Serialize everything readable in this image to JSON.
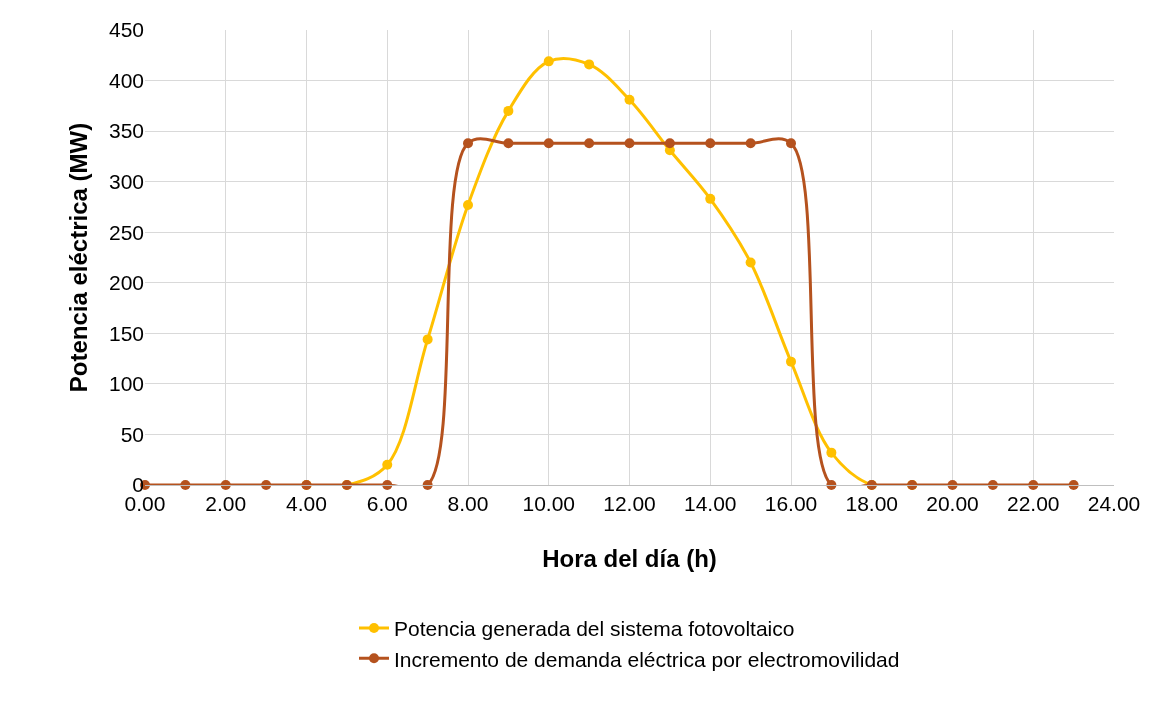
{
  "chart_data": {
    "type": "line",
    "xlabel": "Hora del día (h)",
    "ylabel": "Potencia eléctrica (MW)",
    "x": [
      0,
      1,
      2,
      3,
      4,
      5,
      6,
      7,
      8,
      9,
      10,
      11,
      12,
      13,
      14,
      15,
      16,
      17,
      18,
      19,
      20,
      21,
      22,
      23
    ],
    "series": [
      {
        "name": "Potencia generada del sistema fotovoltaico",
        "color": "#ffc000",
        "values": [
          null,
          null,
          null,
          null,
          0,
          0,
          20,
          144,
          277,
          370,
          419,
          416,
          381,
          331,
          283,
          220,
          122,
          32,
          0,
          0,
          null,
          null,
          null,
          null
        ]
      },
      {
        "name": "Incremento de demanda eléctrica por electromovilidad",
        "color": "#b5521e",
        "values": [
          0,
          0,
          0,
          0,
          0,
          0,
          0,
          0,
          338,
          338,
          338,
          338,
          338,
          338,
          338,
          338,
          338,
          0,
          0,
          0,
          0,
          0,
          0,
          0
        ]
      }
    ],
    "xlim": [
      0,
      24
    ],
    "xticks": [
      {
        "value": 0,
        "label": "0.00"
      },
      {
        "value": 2,
        "label": "2.00"
      },
      {
        "value": 4,
        "label": "4.00"
      },
      {
        "value": 6,
        "label": "6.00"
      },
      {
        "value": 8,
        "label": "8.00"
      },
      {
        "value": 10,
        "label": "10.00"
      },
      {
        "value": 12,
        "label": "12.00"
      },
      {
        "value": 14,
        "label": "14.00"
      },
      {
        "value": 16,
        "label": "16.00"
      },
      {
        "value": 18,
        "label": "18.00"
      },
      {
        "value": 20,
        "label": "20.00"
      },
      {
        "value": 22,
        "label": "22.00"
      },
      {
        "value": 24,
        "label": "24.00"
      }
    ],
    "ylim": [
      0,
      450
    ],
    "yticks": [
      0,
      50,
      100,
      150,
      200,
      250,
      300,
      350,
      400,
      450
    ],
    "grid": true,
    "legend": "bottom",
    "marker": "circle",
    "line_style": "solid"
  }
}
